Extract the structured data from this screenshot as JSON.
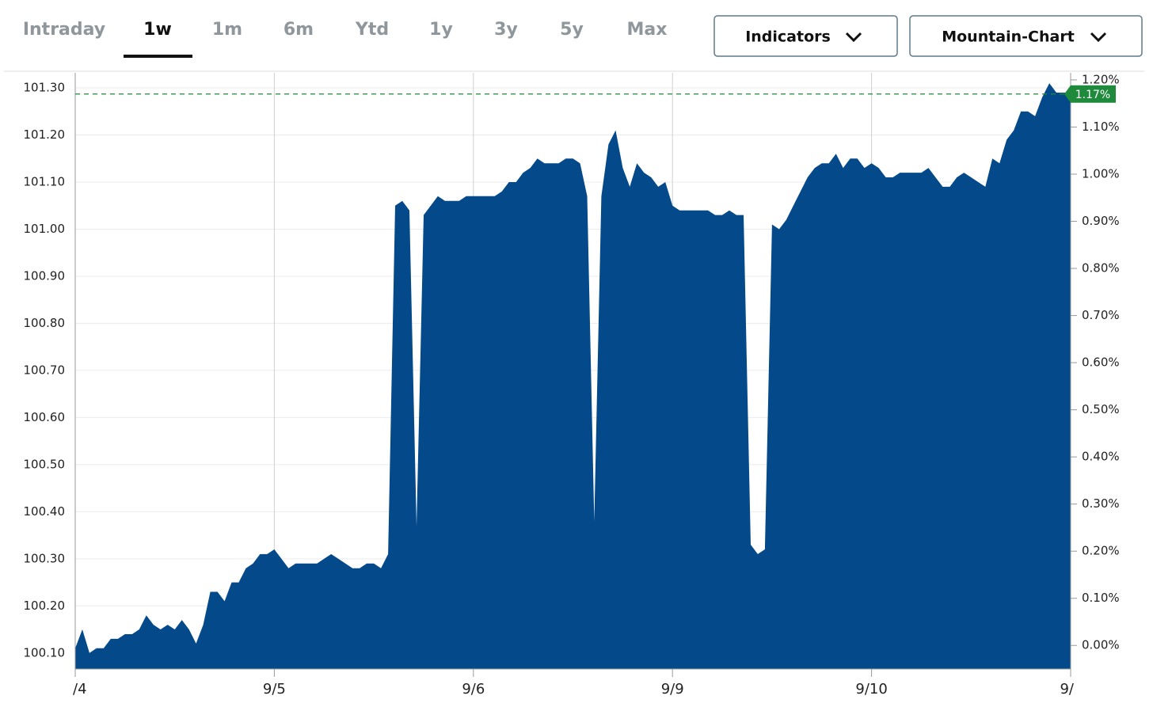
{
  "tabs": [
    "Intraday",
    "1w",
    "1m",
    "6m",
    "Ytd",
    "1y",
    "3y",
    "5y",
    "Max"
  ],
  "active_tab": 1,
  "buttons": [
    "Indicators",
    "Mountain-Chart"
  ],
  "chart_data": {
    "type": "area",
    "categories": [
      "/4",
      null,
      null,
      null,
      null,
      null,
      null,
      null,
      null,
      null,
      null,
      null,
      null,
      null,
      null,
      null,
      null,
      null,
      null,
      null,
      null,
      null,
      null,
      null,
      null,
      null,
      null,
      null,
      "9/5",
      null,
      null,
      null,
      null,
      null,
      null,
      null,
      null,
      null,
      null,
      null,
      null,
      null,
      null,
      null,
      null,
      null,
      null,
      null,
      null,
      null,
      null,
      null,
      null,
      null,
      null,
      null,
      "9/6",
      null,
      null,
      null,
      null,
      null,
      null,
      null,
      null,
      null,
      null,
      null,
      null,
      null,
      null,
      null,
      null,
      null,
      null,
      null,
      null,
      null,
      null,
      null,
      null,
      null,
      null,
      null,
      "9/9",
      null,
      null,
      null,
      null,
      null,
      null,
      null,
      null,
      null,
      null,
      null,
      null,
      null,
      null,
      null,
      null,
      null,
      null,
      null,
      null,
      null,
      null,
      null,
      null,
      null,
      null,
      null,
      "9/10",
      null,
      null,
      null,
      null,
      null,
      null,
      null,
      null,
      null,
      null,
      null,
      null,
      null,
      null,
      null,
      null,
      null,
      null,
      null,
      null,
      null,
      null,
      null,
      null,
      null,
      null,
      null,
      "9/"
    ],
    "series": [
      {
        "color": "#044a8b",
        "values": [
          100.11,
          100.15,
          100.1,
          100.11,
          100.11,
          100.13,
          100.13,
          100.14,
          100.14,
          100.15,
          100.18,
          100.16,
          100.15,
          100.16,
          100.15,
          100.17,
          100.15,
          100.12,
          100.16,
          100.23,
          100.23,
          100.21,
          100.25,
          100.25,
          100.28,
          100.29,
          100.31,
          100.31,
          100.32,
          100.3,
          100.28,
          100.29,
          100.29,
          100.29,
          100.29,
          100.3,
          100.31,
          100.3,
          100.29,
          100.28,
          100.28,
          100.29,
          100.29,
          100.28,
          100.31,
          101.05,
          101.06,
          101.04,
          100.37,
          101.03,
          101.05,
          101.07,
          101.06,
          101.06,
          101.06,
          101.07,
          101.07,
          101.07,
          101.07,
          101.07,
          101.08,
          101.1,
          101.1,
          101.12,
          101.13,
          101.15,
          101.14,
          101.14,
          101.14,
          101.15,
          101.15,
          101.14,
          101.07,
          100.38,
          101.07,
          101.18,
          101.21,
          101.13,
          101.09,
          101.14,
          101.12,
          101.11,
          101.09,
          101.1,
          101.05,
          101.04,
          101.04,
          101.04,
          101.04,
          101.04,
          101.03,
          101.03,
          101.04,
          101.03,
          101.03,
          100.33,
          100.31,
          100.32,
          101.01,
          101.0,
          101.02,
          101.05,
          101.08,
          101.11,
          101.13,
          101.14,
          101.14,
          101.16,
          101.13,
          101.15,
          101.15,
          101.13,
          101.14,
          101.13,
          101.11,
          101.11,
          101.12,
          101.12,
          101.12,
          101.12,
          101.13,
          101.11,
          101.09,
          101.09,
          101.11,
          101.12,
          101.11,
          101.1,
          101.09,
          101.15,
          101.14,
          101.19,
          101.21,
          101.25,
          101.25,
          101.24,
          101.28,
          101.31,
          101.29,
          101.29,
          101.29
        ]
      }
    ],
    "ylim": [
      100.066,
      101.332
    ],
    "yticks": [
      {
        "value": 100.1,
        "label": "100.10"
      },
      {
        "value": 100.2,
        "label": "100.20"
      },
      {
        "value": 100.3,
        "label": "100.30"
      },
      {
        "value": 100.4,
        "label": "100.40"
      },
      {
        "value": 100.5,
        "label": "100.50"
      },
      {
        "value": 100.6,
        "label": "100.60"
      },
      {
        "value": 100.7,
        "label": "100.70"
      },
      {
        "value": 100.8,
        "label": "100.80"
      },
      {
        "value": 100.9,
        "label": "100.90"
      },
      {
        "value": 101.0,
        "label": "101.00"
      },
      {
        "value": 101.1,
        "label": "101.10"
      },
      {
        "value": 101.2,
        "label": "101.20"
      },
      {
        "value": 101.3,
        "label": "101.30"
      }
    ],
    "y2lim": [
      -0.05,
      1.215
    ],
    "y2ticks": [
      {
        "value": 0,
        "label": "0.00%"
      },
      {
        "value": 0.1,
        "label": "0.10%"
      },
      {
        "value": 0.2,
        "label": "0.20%"
      },
      {
        "value": 0.3,
        "label": "0.30%"
      },
      {
        "value": 0.4,
        "label": "0.40%"
      },
      {
        "value": 0.5,
        "label": "0.50%"
      },
      {
        "value": 0.6,
        "label": "0.60%"
      },
      {
        "value": 0.7,
        "label": "0.70%"
      },
      {
        "value": 0.8,
        "label": "0.80%"
      },
      {
        "value": 0.9,
        "label": "0.90%"
      },
      {
        "value": 1.0,
        "label": "1.00%"
      },
      {
        "value": 1.1,
        "label": "1.10%"
      },
      {
        "value": 1.2,
        "label": "1.20%"
      }
    ],
    "reference_line": {
      "value": 1.17,
      "label": "1.17%",
      "axis": "y2",
      "color": "#1f8a3c"
    },
    "grid": true
  }
}
